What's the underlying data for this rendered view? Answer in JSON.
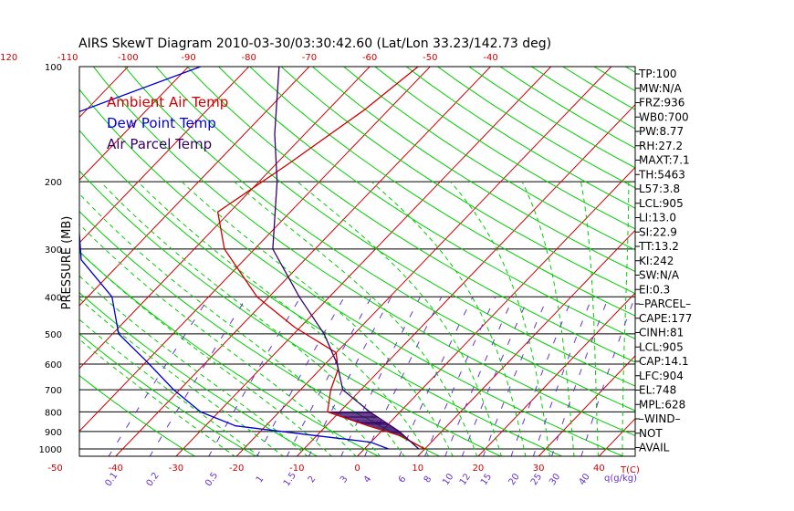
{
  "chart_data": {
    "type": "line",
    "title": "AIRS SkewT Diagram 2010-03-30/03:30:42.60 (Lat/Lon 33.23/142.73 deg)",
    "ylabel": "PRESSURE (MB)",
    "xlabel": "T(C)",
    "mixing_label": "q(g/kg)",
    "pressure_ticks": [
      "100",
      "200",
      "300",
      "400",
      "500",
      "600",
      "700",
      "800",
      "900",
      "1000"
    ],
    "bottom_temp_ticks": [
      "-50",
      "-40",
      "-30",
      "-20",
      "-10",
      "0",
      "10",
      "20",
      "30",
      "40"
    ],
    "top_temp_ticks": [
      "-120",
      "-110",
      "-100",
      "-90",
      "-80",
      "-70",
      "-60",
      "-50",
      "-40"
    ],
    "mixing_ratio_ticks": [
      "0.1",
      "0.2",
      "0.5",
      "1",
      "1.5",
      "2",
      "3",
      "4",
      "6",
      "8",
      "10",
      "12",
      "15",
      "20",
      "25",
      "30",
      "40"
    ],
    "legend": [
      {
        "label": "Ambient Air Temp",
        "color": "#cc0000"
      },
      {
        "label": "Dew Point Temp",
        "color": "#0000cc"
      },
      {
        "label": "Air Parcel Temp",
        "color": "#330066"
      }
    ],
    "series": [
      {
        "name": "Ambient Air Temp",
        "points": [
          [
            100,
            -52
          ],
          [
            130,
            -54
          ],
          [
            180,
            -58
          ],
          [
            240,
            -62
          ],
          [
            300,
            -55
          ],
          [
            400,
            -42
          ],
          [
            480,
            -31
          ],
          [
            560,
            -20
          ],
          [
            620,
            -17
          ],
          [
            700,
            -15
          ],
          [
            800,
            -12
          ],
          [
            870,
            -3
          ],
          [
            925,
            4
          ],
          [
            1000,
            10
          ]
        ]
      },
      {
        "name": "Dew Point Temp",
        "points": [
          [
            100,
            -88
          ],
          [
            140,
            -104
          ],
          [
            200,
            -102
          ],
          [
            250,
            -84
          ],
          [
            320,
            -77
          ],
          [
            400,
            -66
          ],
          [
            500,
            -59
          ],
          [
            590,
            -50
          ],
          [
            700,
            -41
          ],
          [
            800,
            -33
          ],
          [
            870,
            -25
          ],
          [
            920,
            -11
          ],
          [
            960,
            0
          ],
          [
            1000,
            4
          ]
        ]
      },
      {
        "name": "Air Parcel Temp",
        "points": [
          [
            100,
            -75
          ],
          [
            150,
            -65
          ],
          [
            200,
            -57
          ],
          [
            300,
            -47
          ],
          [
            400,
            -35
          ],
          [
            500,
            -25
          ],
          [
            600,
            -18
          ],
          [
            700,
            -13
          ],
          [
            800,
            -5
          ],
          [
            900,
            3
          ],
          [
            1000,
            9
          ]
        ]
      }
    ]
  },
  "side_labels": [
    "TP:100",
    "MW:N/A",
    "FRZ:936",
    "WB0:700",
    "PW:8.77",
    "RH:27.2",
    "MAXT:7.1",
    "TH:5463",
    "L57:3.8",
    "LCL:905",
    "LI:13.0",
    "SI:22.9",
    "TT:13.2",
    "KI:242",
    "SW:N/A",
    "EI:0.3",
    "–PARCEL–",
    "CAPE:177",
    "CINH:81",
    "LCL:905",
    "CAP:14.1",
    "LFC:904",
    "EL:748",
    "MPL:628",
    "–WIND–",
    "NOT",
    "AVAIL"
  ],
  "colors": {
    "isotherm": "#cc0000",
    "dry_adiabat": "#00cc00",
    "moist_adiabat": "#00cc00",
    "mixing_ratio": "#6633cc",
    "temperature": "#cc0000",
    "dewpoint": "#0000cc",
    "parcel": "#330066",
    "axis": "#000000"
  }
}
